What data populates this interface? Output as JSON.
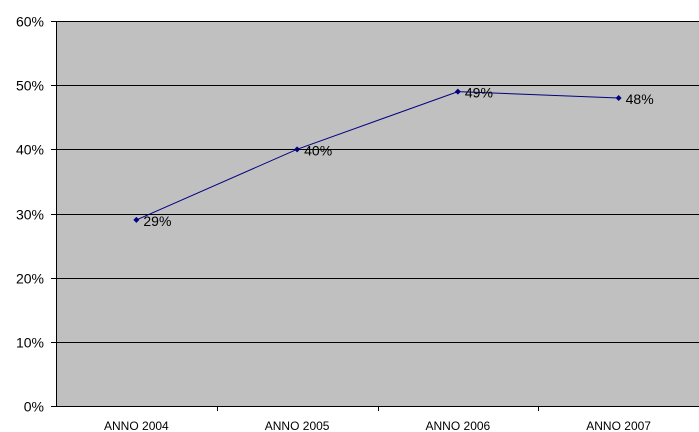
{
  "chart_data": {
    "type": "line",
    "categories": [
      "ANNO 2004",
      "ANNO 2005",
      "ANNO 2006",
      "ANNO 2007"
    ],
    "series": [
      {
        "values": [
          29,
          40,
          49,
          48
        ],
        "data_labels": [
          "29%",
          "40%",
          "49%",
          "48%"
        ],
        "color": "#000080"
      }
    ],
    "y_ticks": [
      "0%",
      "10%",
      "20%",
      "30%",
      "40%",
      "50%",
      "60%"
    ],
    "ylim": [
      0,
      60
    ],
    "y_step": 10,
    "grid": true,
    "legend": "none",
    "plot_background": "#c0c0c0",
    "gridline_color": "#000000"
  }
}
